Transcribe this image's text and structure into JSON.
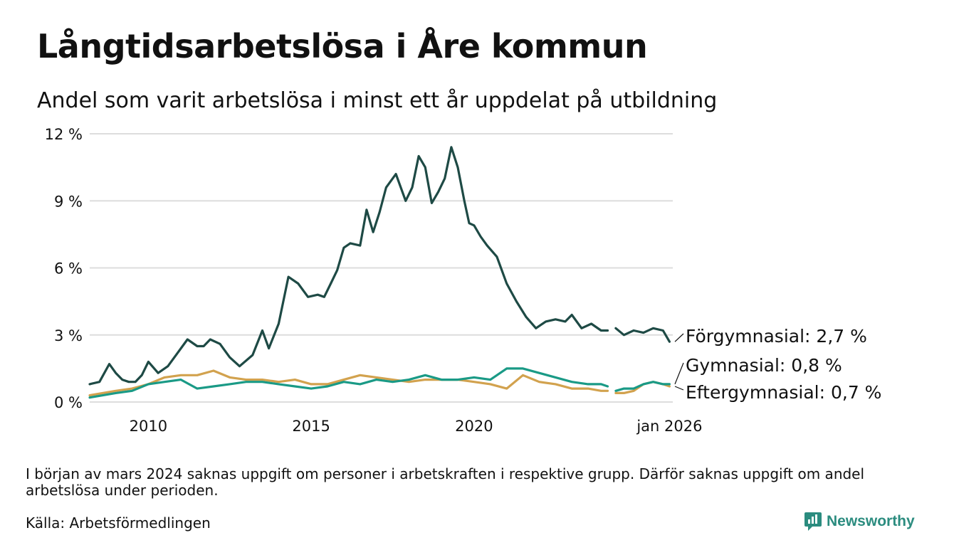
{
  "title": "Långtidsarbetslösa i Åre kommun",
  "subtitle": "Andel som varit arbetslösa i minst ett år uppdelat på utbildning",
  "footnote": "I början av mars 2024 saknas uppgift om personer i arbetskraften i respektive grupp. Därför saknas uppgift om andel arbetslösa under perioden.",
  "source": "Källa: Arbetsförmedlingen",
  "logo": {
    "text": "Newsworthy",
    "icon": "newsworthy-chart-icon"
  },
  "colors": {
    "forgymnasial": "#1e4a45",
    "gymnasial": "#1a9a86",
    "eftergymnasial": "#d2a24e",
    "grid": "#dddddd"
  },
  "chart_data": {
    "type": "line",
    "title": "Långtidsarbetslösa i Åre kommun",
    "xlabel": "",
    "ylabel": "",
    "ylim": [
      0,
      12
    ],
    "xlim": [
      2008.2,
      2026.1
    ],
    "y_ticks": [
      0,
      3,
      6,
      9,
      12
    ],
    "y_tick_labels": [
      "0 %",
      "3 %",
      "6 %",
      "9 %",
      "12 %"
    ],
    "x_ticks": [
      2010,
      2015,
      2020,
      2026.0
    ],
    "x_tick_labels": [
      "2010",
      "2015",
      "2020",
      "jan 2026"
    ],
    "gap": [
      2024.15,
      2024.35
    ],
    "grid": true,
    "series": [
      {
        "name": "Förgymnasial",
        "end_label": "Förgymnasial: 2,7 %",
        "x": [
          2008.2,
          2008.5,
          2008.8,
          2009.0,
          2009.2,
          2009.4,
          2009.6,
          2009.8,
          2010.0,
          2010.3,
          2010.6,
          2010.9,
          2011.2,
          2011.5,
          2011.7,
          2011.9,
          2012.2,
          2012.5,
          2012.8,
          2013.2,
          2013.5,
          2013.7,
          2014.0,
          2014.3,
          2014.6,
          2014.9,
          2015.2,
          2015.4,
          2015.6,
          2015.8,
          2016.0,
          2016.2,
          2016.5,
          2016.7,
          2016.9,
          2017.1,
          2017.3,
          2017.6,
          2017.9,
          2018.1,
          2018.3,
          2018.5,
          2018.7,
          2018.9,
          2019.1,
          2019.3,
          2019.5,
          2019.7,
          2019.85,
          2020.0,
          2020.2,
          2020.4,
          2020.7,
          2021.0,
          2021.3,
          2021.6,
          2021.9,
          2022.2,
          2022.5,
          2022.8,
          2023.0,
          2023.3,
          2023.6,
          2023.9,
          2024.1,
          2024.35,
          2024.6,
          2024.9,
          2025.2,
          2025.5,
          2025.8,
          2026.0
        ],
        "values": [
          0.8,
          0.9,
          1.7,
          1.3,
          1.0,
          0.9,
          0.9,
          1.2,
          1.8,
          1.3,
          1.6,
          2.2,
          2.8,
          2.5,
          2.5,
          2.8,
          2.6,
          2.0,
          1.6,
          2.1,
          3.2,
          2.4,
          3.5,
          5.6,
          5.3,
          4.7,
          4.8,
          4.7,
          5.3,
          5.9,
          6.9,
          7.1,
          7.0,
          8.6,
          7.6,
          8.5,
          9.6,
          10.2,
          9.0,
          9.6,
          11.0,
          10.5,
          8.9,
          9.4,
          10.0,
          11.4,
          10.5,
          9.0,
          8.0,
          7.9,
          7.4,
          7.0,
          6.5,
          5.3,
          4.5,
          3.8,
          3.3,
          3.6,
          3.7,
          3.6,
          3.9,
          3.3,
          3.5,
          3.2,
          3.2,
          3.3,
          3.0,
          3.2,
          3.1,
          3.3,
          3.2,
          2.7
        ]
      },
      {
        "name": "Gymnasial",
        "end_label": "Gymnasial: 0,8 %",
        "x": [
          2008.2,
          2009.0,
          2009.5,
          2010.0,
          2010.5,
          2011.0,
          2011.5,
          2012.0,
          2012.5,
          2013.0,
          2013.5,
          2014.0,
          2014.5,
          2015.0,
          2015.5,
          2016.0,
          2016.5,
          2017.0,
          2017.5,
          2018.0,
          2018.5,
          2019.0,
          2019.5,
          2020.0,
          2020.5,
          2021.0,
          2021.5,
          2022.0,
          2022.5,
          2023.0,
          2023.5,
          2023.9,
          2024.1,
          2024.35,
          2024.6,
          2024.9,
          2025.2,
          2025.5,
          2025.8,
          2026.0
        ],
        "values": [
          0.2,
          0.4,
          0.5,
          0.8,
          0.9,
          1.0,
          0.6,
          0.7,
          0.8,
          0.9,
          0.9,
          0.8,
          0.7,
          0.6,
          0.7,
          0.9,
          0.8,
          1.0,
          0.9,
          1.0,
          1.2,
          1.0,
          1.0,
          1.1,
          1.0,
          1.5,
          1.5,
          1.3,
          1.1,
          0.9,
          0.8,
          0.8,
          0.7,
          0.5,
          0.6,
          0.6,
          0.8,
          0.9,
          0.8,
          0.8
        ]
      },
      {
        "name": "Eftergymnasial",
        "end_label": "Eftergymnasial: 0,7 %",
        "x": [
          2008.2,
          2009.0,
          2009.5,
          2010.0,
          2010.5,
          2011.0,
          2011.5,
          2012.0,
          2012.5,
          2013.0,
          2013.5,
          2014.0,
          2014.5,
          2015.0,
          2015.5,
          2016.0,
          2016.5,
          2017.0,
          2017.5,
          2018.0,
          2018.5,
          2019.0,
          2019.5,
          2020.0,
          2020.5,
          2021.0,
          2021.5,
          2022.0,
          2022.5,
          2023.0,
          2023.5,
          2023.9,
          2024.1,
          2024.35,
          2024.6,
          2024.9,
          2025.2,
          2025.5,
          2025.8,
          2026.0
        ],
        "values": [
          0.3,
          0.5,
          0.6,
          0.8,
          1.1,
          1.2,
          1.2,
          1.4,
          1.1,
          1.0,
          1.0,
          0.9,
          1.0,
          0.8,
          0.8,
          1.0,
          1.2,
          1.1,
          1.0,
          0.9,
          1.0,
          1.0,
          1.0,
          0.9,
          0.8,
          0.6,
          1.2,
          0.9,
          0.8,
          0.6,
          0.6,
          0.5,
          0.5,
          0.4,
          0.4,
          0.5,
          0.8,
          0.9,
          0.8,
          0.7
        ]
      }
    ]
  }
}
